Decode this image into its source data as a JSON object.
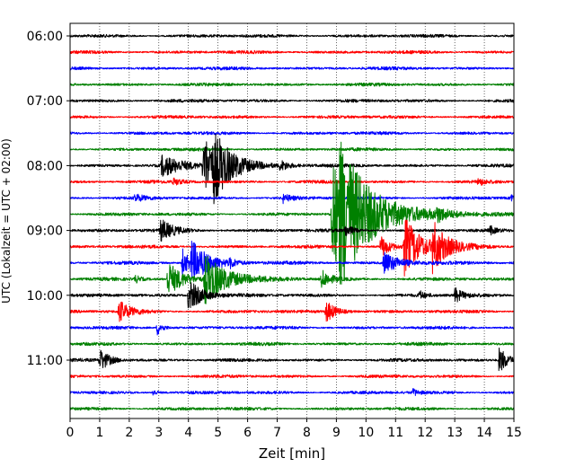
{
  "chart_data": {
    "type": "line",
    "title": "",
    "xlabel": "Zeit  [min]",
    "ylabel": "UTC (Lokalzeit = UTC + 02:00)",
    "xlim": [
      0,
      15
    ],
    "x_ticks": [
      0,
      1,
      2,
      3,
      4,
      5,
      6,
      7,
      8,
      9,
      10,
      11,
      12,
      13,
      14,
      15
    ],
    "y_tick_labels": [
      "06:00",
      "07:00",
      "08:00",
      "09:00",
      "10:00",
      "11:00"
    ],
    "row_interval_min": 15,
    "start_time": "06:00",
    "trace_colors": [
      "#000000",
      "#ff0000",
      "#0000ff",
      "#008000"
    ],
    "grid": "vertical dotted",
    "traces": [
      {
        "time": "06:00",
        "color": "#000000",
        "events": []
      },
      {
        "time": "06:15",
        "color": "#ff0000",
        "events": []
      },
      {
        "time": "06:30",
        "color": "#0000ff",
        "events": []
      },
      {
        "time": "06:45",
        "color": "#008000",
        "events": []
      },
      {
        "time": "07:00",
        "color": "#000000",
        "events": []
      },
      {
        "time": "07:15",
        "color": "#ff0000",
        "events": []
      },
      {
        "time": "07:30",
        "color": "#0000ff",
        "events": []
      },
      {
        "time": "07:45",
        "color": "#008000",
        "events": []
      },
      {
        "time": "08:00",
        "color": "#000000",
        "events": [
          {
            "t": 3.1,
            "amp": 0.85,
            "dur": 1.4
          },
          {
            "t": 4.5,
            "amp": 2.4,
            "dur": 1.5
          },
          {
            "t": 4.85,
            "amp": 1.6,
            "dur": 1.2
          },
          {
            "t": 7.1,
            "amp": 0.4,
            "dur": 0.6
          }
        ]
      },
      {
        "time": "08:15",
        "color": "#ff0000",
        "events": [
          {
            "t": 3.5,
            "amp": 0.25,
            "dur": 0.6
          },
          {
            "t": 13.8,
            "amp": 0.3,
            "dur": 0.4
          }
        ]
      },
      {
        "time": "08:30",
        "color": "#0000ff",
        "events": [
          {
            "t": 2.2,
            "amp": 0.3,
            "dur": 0.6
          },
          {
            "t": 7.2,
            "amp": 0.35,
            "dur": 0.5
          },
          {
            "t": 14.9,
            "amp": 0.4,
            "dur": 0.2
          }
        ]
      },
      {
        "time": "08:45",
        "color": "#008000",
        "events": [
          {
            "t": 8.85,
            "amp": 4.2,
            "dur": 2.8
          },
          {
            "t": 9.1,
            "amp": 3.0,
            "dur": 1.5
          },
          {
            "t": 12.4,
            "amp": 0.5,
            "dur": 0.5
          }
        ]
      },
      {
        "time": "09:00",
        "color": "#000000",
        "events": [
          {
            "t": 3.05,
            "amp": 0.9,
            "dur": 0.9
          },
          {
            "t": 9.3,
            "amp": 0.5,
            "dur": 0.5
          },
          {
            "t": 14.2,
            "amp": 0.35,
            "dur": 0.3
          }
        ]
      },
      {
        "time": "09:15",
        "color": "#ff0000",
        "events": [
          {
            "t": 10.5,
            "amp": 0.9,
            "dur": 0.6
          },
          {
            "t": 11.3,
            "amp": 2.4,
            "dur": 1.2
          },
          {
            "t": 12.25,
            "amp": 1.8,
            "dur": 1.0
          }
        ]
      },
      {
        "time": "09:30",
        "color": "#0000ff",
        "events": [
          {
            "t": 3.8,
            "amp": 1.1,
            "dur": 0.5
          },
          {
            "t": 4.1,
            "amp": 1.6,
            "dur": 1.3
          },
          {
            "t": 5.4,
            "amp": 0.3,
            "dur": 0.4
          },
          {
            "t": 10.6,
            "amp": 0.9,
            "dur": 1.2
          }
        ]
      },
      {
        "time": "09:45",
        "color": "#008000",
        "events": [
          {
            "t": 2.2,
            "amp": 0.3,
            "dur": 0.4
          },
          {
            "t": 3.3,
            "amp": 1.4,
            "dur": 1.0
          },
          {
            "t": 4.55,
            "amp": 2.0,
            "dur": 1.6
          },
          {
            "t": 8.5,
            "amp": 0.7,
            "dur": 0.7
          }
        ]
      },
      {
        "time": "10:00",
        "color": "#000000",
        "events": [
          {
            "t": 4.0,
            "amp": 1.3,
            "dur": 1.0
          },
          {
            "t": 11.8,
            "amp": 0.35,
            "dur": 0.4
          },
          {
            "t": 13.0,
            "amp": 0.6,
            "dur": 0.6
          }
        ]
      },
      {
        "time": "10:15",
        "color": "#ff0000",
        "events": [
          {
            "t": 1.65,
            "amp": 0.9,
            "dur": 0.8
          },
          {
            "t": 8.65,
            "amp": 0.9,
            "dur": 0.7
          }
        ]
      },
      {
        "time": "10:30",
        "color": "#0000ff",
        "events": [
          {
            "t": 2.95,
            "amp": 0.6,
            "dur": 0.4
          }
        ]
      },
      {
        "time": "10:45",
        "color": "#008000",
        "events": []
      },
      {
        "time": "11:00",
        "color": "#000000",
        "events": [
          {
            "t": 1.0,
            "amp": 0.9,
            "dur": 0.7
          },
          {
            "t": 14.5,
            "amp": 1.1,
            "dur": 0.6
          }
        ]
      },
      {
        "time": "11:15",
        "color": "#ff0000",
        "events": []
      },
      {
        "time": "11:30",
        "color": "#0000ff",
        "events": [
          {
            "t": 2.8,
            "amp": 0.3,
            "dur": 0.3
          },
          {
            "t": 11.6,
            "amp": 0.3,
            "dur": 0.3
          }
        ]
      },
      {
        "time": "11:45",
        "color": "#008000",
        "events": []
      }
    ]
  }
}
